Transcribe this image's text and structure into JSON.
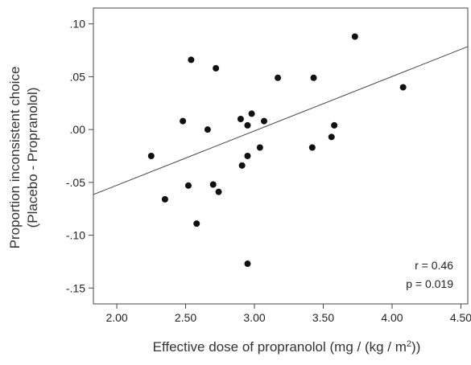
{
  "chart_data": {
    "type": "scatter",
    "xlabel": "Effective dose of propranolol (mg / (kg / m",
    "xlabel_sup": "2",
    "xlabel_end": "))",
    "ylabel_line1": "Proportion inconsistent choice",
    "ylabel_line2": "(Placebo - Propranolol)",
    "xlim": [
      1.83,
      4.55
    ],
    "ylim": [
      -0.165,
      0.115
    ],
    "x_ticks": [
      2.0,
      2.5,
      3.0,
      3.5,
      4.0,
      4.5
    ],
    "x_tick_labels": [
      "2.00",
      "2.50",
      "3.00",
      "3.50",
      "4.00",
      "4.50"
    ],
    "y_ticks": [
      0.1,
      0.05,
      0.0,
      -0.05,
      -0.1,
      -0.15
    ],
    "y_tick_labels": [
      ".10",
      ".05",
      ".00",
      "-.05",
      "-.10",
      "-.15"
    ],
    "grid": false,
    "points": [
      {
        "x": 2.25,
        "y": -0.025
      },
      {
        "x": 2.35,
        "y": -0.066
      },
      {
        "x": 2.48,
        "y": 0.008
      },
      {
        "x": 2.52,
        "y": -0.053
      },
      {
        "x": 2.54,
        "y": 0.066
      },
      {
        "x": 2.58,
        "y": -0.089
      },
      {
        "x": 2.66,
        "y": 0.0
      },
      {
        "x": 2.7,
        "y": -0.052
      },
      {
        "x": 2.72,
        "y": 0.058
      },
      {
        "x": 2.74,
        "y": -0.059
      },
      {
        "x": 2.9,
        "y": 0.01
      },
      {
        "x": 2.91,
        "y": -0.034
      },
      {
        "x": 2.95,
        "y": 0.004
      },
      {
        "x": 2.95,
        "y": -0.025
      },
      {
        "x": 2.95,
        "y": -0.127
      },
      {
        "x": 2.98,
        "y": 0.015
      },
      {
        "x": 3.04,
        "y": -0.017
      },
      {
        "x": 3.07,
        "y": 0.008
      },
      {
        "x": 3.17,
        "y": 0.049
      },
      {
        "x": 3.42,
        "y": -0.017
      },
      {
        "x": 3.43,
        "y": 0.049
      },
      {
        "x": 3.56,
        "y": -0.007
      },
      {
        "x": 3.58,
        "y": 0.004
      },
      {
        "x": 3.73,
        "y": 0.088
      },
      {
        "x": 4.08,
        "y": 0.04
      }
    ],
    "fit_line": {
      "x0": 1.83,
      "y0": -0.0615,
      "x1": 4.55,
      "y1": 0.0785
    },
    "annotations": [
      "r = 0.46",
      "p = 0.019"
    ]
  }
}
